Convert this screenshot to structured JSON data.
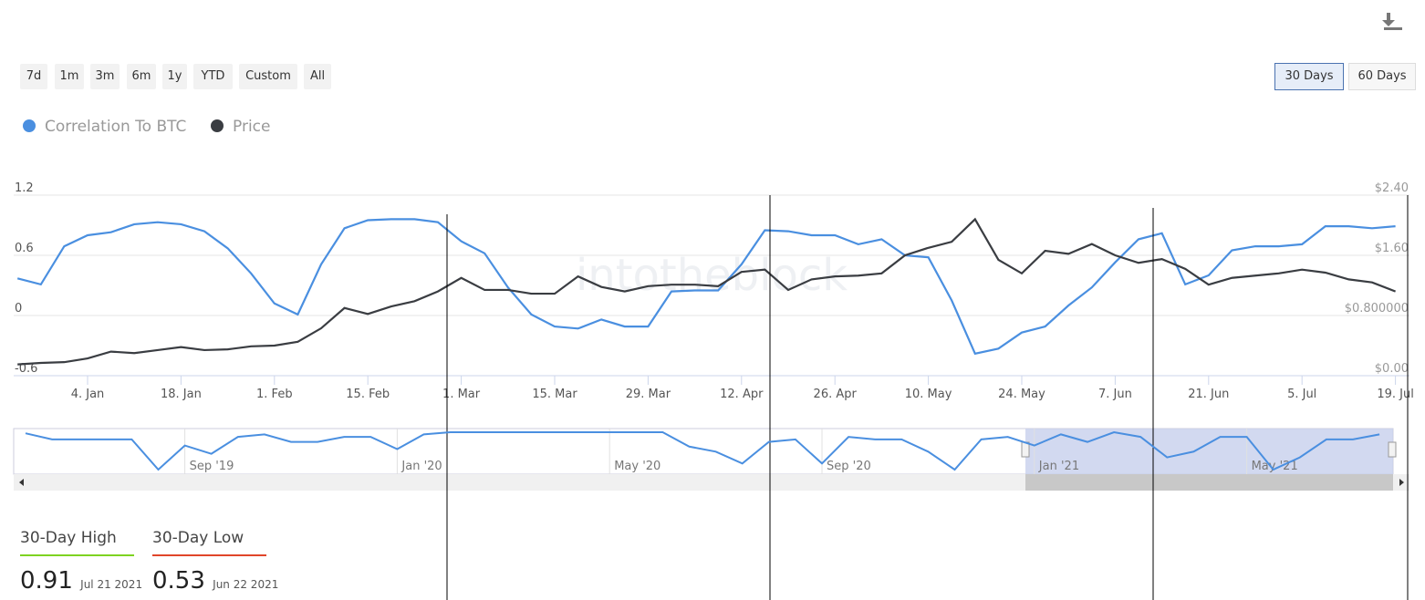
{
  "controls": {
    "ranges": [
      "7d",
      "1m",
      "3m",
      "6m",
      "1y",
      "YTD",
      "Custom",
      "All"
    ],
    "windows": [
      "30 Days",
      "60 Days"
    ]
  },
  "watermark": "intotheblock",
  "chart_data": {
    "type": "line",
    "categories": [
      null,
      null,
      null,
      "4. Jan",
      null,
      null,
      null,
      "18. Jan",
      null,
      null,
      null,
      "1. Feb",
      null,
      null,
      null,
      "15. Feb",
      null,
      null,
      null,
      "1. Mar",
      null,
      null,
      null,
      "15. Mar",
      null,
      null,
      null,
      "29. Mar",
      null,
      null,
      null,
      "12. Apr",
      null,
      null,
      null,
      "26. Apr",
      null,
      null,
      null,
      "10. May",
      null,
      null,
      null,
      "24. May",
      null,
      null,
      null,
      "7. Jun",
      null,
      null,
      null,
      "21. Jun",
      null,
      null,
      null,
      "5. Jul",
      null,
      null,
      null,
      "19. Jul"
    ],
    "series": [
      {
        "name": "Correlation To BTC",
        "color": "#4a8fe0",
        "values": [
          0.37,
          0.31,
          0.69,
          0.8,
          0.83,
          0.91,
          0.93,
          0.91,
          0.84,
          0.67,
          0.42,
          0.12,
          0.01,
          0.51,
          0.87,
          0.95,
          0.96,
          0.96,
          0.93,
          0.74,
          0.62,
          0.28,
          0.01,
          -0.11,
          -0.13,
          -0.04,
          -0.11,
          -0.11,
          0.24,
          0.25,
          0.25,
          0.51,
          0.85,
          0.84,
          0.8,
          0.8,
          0.71,
          0.76,
          0.6,
          0.58,
          0.15,
          -0.38,
          -0.33,
          -0.17,
          -0.11,
          0.1,
          0.28,
          0.53,
          0.76,
          0.82,
          0.31,
          0.4,
          0.65,
          0.69,
          0.69,
          0.71,
          0.89,
          0.89,
          0.87,
          0.89
        ]
      },
      {
        "name": "Price",
        "color": "#3a3d42",
        "axis": "y2",
        "values": [
          0.15,
          0.17,
          0.18,
          0.23,
          0.32,
          0.3,
          0.34,
          0.38,
          0.34,
          0.35,
          0.39,
          0.4,
          0.45,
          0.63,
          0.9,
          0.82,
          0.92,
          0.99,
          1.12,
          1.3,
          1.14,
          1.14,
          1.09,
          1.09,
          1.32,
          1.18,
          1.12,
          1.19,
          1.21,
          1.21,
          1.19,
          1.38,
          1.41,
          1.14,
          1.28,
          1.32,
          1.33,
          1.36,
          1.6,
          1.7,
          1.78,
          2.08,
          1.54,
          1.36,
          1.66,
          1.62,
          1.75,
          1.6,
          1.5,
          1.55,
          1.42,
          1.21,
          1.3,
          1.33,
          1.36,
          1.41,
          1.37,
          1.28,
          1.24,
          1.12
        ]
      }
    ],
    "ylim": [
      -0.6,
      1.2
    ],
    "yticks": [
      -0.6,
      0,
      0.6,
      1.2
    ],
    "y2lim": [
      0,
      2.4
    ],
    "y2ticks": [
      {
        "value": 0,
        "label": "$0.00"
      },
      {
        "value": 0.8,
        "label": "$0.800000"
      },
      {
        "value": 1.6,
        "label": "$1.60"
      },
      {
        "value": 2.4,
        "label": "$2.40"
      }
    ],
    "grid": true
  },
  "navigator": {
    "categories": [
      null,
      null,
      null,
      null,
      null,
      null,
      "Sep '19",
      null,
      null,
      null,
      null,
      null,
      null,
      null,
      "Jan '20",
      null,
      null,
      null,
      null,
      null,
      null,
      null,
      "May '20",
      null,
      null,
      null,
      null,
      null,
      null,
      null,
      "Sep '20",
      null,
      null,
      null,
      null,
      null,
      null,
      null,
      "Jan '21",
      null,
      null,
      null,
      null,
      null,
      null,
      null,
      "May '21",
      null,
      null,
      null,
      null,
      null
    ],
    "color": "#4a8fe0",
    "values": [
      0.95,
      0.78,
      0.78,
      0.78,
      0.78,
      -0.06,
      0.61,
      0.38,
      0.85,
      0.92,
      0.71,
      0.71,
      0.85,
      0.85,
      0.51,
      0.92,
      0.98,
      0.98,
      0.98,
      0.98,
      0.98,
      0.98,
      0.98,
      0.98,
      0.98,
      0.58,
      0.44,
      0.11,
      0.71,
      0.78,
      0.11,
      0.85,
      0.78,
      0.78,
      0.44,
      -0.06,
      0.78,
      0.85,
      0.61,
      0.92,
      0.71,
      0.98,
      0.85,
      0.28,
      0.44,
      0.85,
      0.85,
      -0.06,
      0.28,
      0.78,
      0.78,
      0.92
    ]
  },
  "stats": [
    {
      "label": "30-Day High",
      "value": 0.91,
      "date": "Jul 21 2021"
    },
    {
      "label": "30-Day Low",
      "value": 0.53,
      "date": "Jun 22 2021"
    }
  ]
}
